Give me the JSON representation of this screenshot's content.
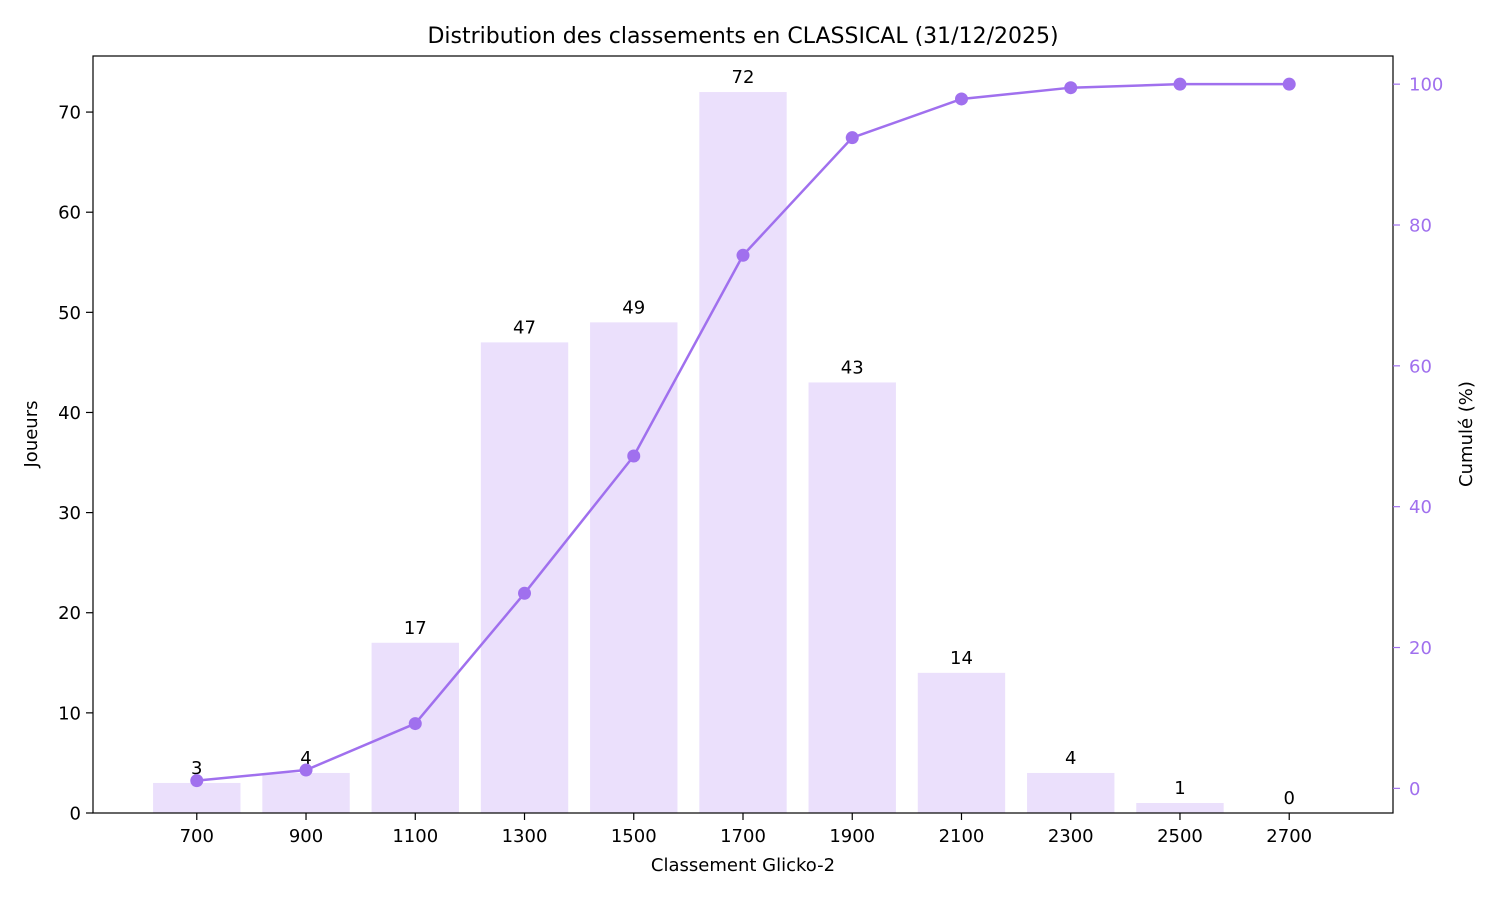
{
  "chart_data": {
    "type": "bar",
    "title": "Distribution des classements en CLASSICAL (31/12/2025)",
    "xlabel": "Classement Glicko-2",
    "ylabel": "Joueurs",
    "y2label": "Cumulé (%)",
    "categories": [
      "700",
      "900",
      "1100",
      "1300",
      "1500",
      "1700",
      "1900",
      "2100",
      "2300",
      "2500",
      "2700"
    ],
    "x_values": [
      700,
      900,
      1100,
      1300,
      1500,
      1700,
      1900,
      2100,
      2300,
      2500,
      2700
    ],
    "values": [
      3,
      4,
      17,
      47,
      49,
      72,
      43,
      14,
      4,
      1,
      0
    ],
    "value_labels": [
      "3",
      "4",
      "17",
      "47",
      "49",
      "72",
      "43",
      "14",
      "4",
      "1",
      "0"
    ],
    "cumulative_percent": [
      1.1,
      2.6,
      9.2,
      27.7,
      47.2,
      75.7,
      92.4,
      97.9,
      99.5,
      100.0,
      100.0
    ],
    "ylim": [
      0,
      75.6
    ],
    "y2lim": [
      -3.5,
      104.0
    ],
    "y_ticks": [
      0,
      10,
      20,
      30,
      40,
      50,
      60,
      70
    ],
    "y_tick_labels": [
      "0",
      "10",
      "20",
      "30",
      "40",
      "50",
      "60",
      "70"
    ],
    "y2_ticks": [
      0,
      20,
      40,
      60,
      80,
      100
    ],
    "y2_tick_labels": [
      "0",
      "20",
      "40",
      "60",
      "80",
      "100"
    ],
    "xlim": [
      510,
      2890
    ],
    "bar_width_units": 160,
    "grid": false,
    "colors": {
      "bar": "#ebe0fc",
      "line": "#a070ee",
      "right_axis": "#a070ee",
      "axis": "#000000"
    }
  }
}
